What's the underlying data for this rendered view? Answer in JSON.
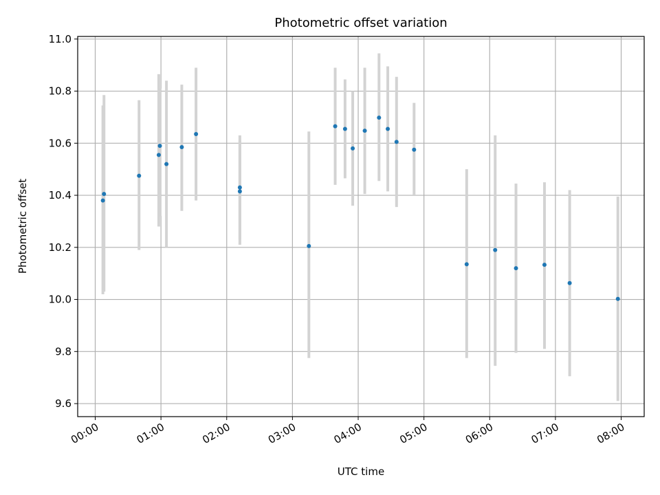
{
  "chart_data": {
    "type": "scatter",
    "title": "Photometric offset variation",
    "xlabel": "UTC time",
    "ylabel": "Photometric offset",
    "x_tick_labels": [
      "00:00",
      "01:00",
      "02:00",
      "03:00",
      "04:00",
      "05:00",
      "06:00",
      "07:00",
      "08:00"
    ],
    "y_tick_labels": [
      "9.6",
      "9.8",
      "10.0",
      "10.2",
      "10.4",
      "10.6",
      "10.8",
      "11.0"
    ],
    "xlim": [
      "23:44",
      "08:21"
    ],
    "ylim": [
      9.55,
      11.01
    ],
    "grid": true,
    "colors": {
      "points": "#1f77b4",
      "errorbars": "#d3d3d3",
      "grid": "#b0b0b0"
    },
    "series": [
      {
        "x": [
          "00:07",
          "00:08",
          "00:40",
          "00:58",
          "00:59",
          "01:05",
          "01:19",
          "01:32",
          "02:12",
          "02:12",
          "03:15",
          "03:39",
          "03:48",
          "03:55",
          "04:06",
          "04:19",
          "04:27",
          "04:35",
          "04:51",
          "05:39",
          "06:05",
          "06:24",
          "06:50",
          "07:13",
          "07:57"
        ],
        "y": [
          10.38,
          10.405,
          10.475,
          10.555,
          10.59,
          10.52,
          10.585,
          10.635,
          10.415,
          10.43,
          10.205,
          10.665,
          10.655,
          10.58,
          10.648,
          10.698,
          10.655,
          10.605,
          10.575,
          10.135,
          10.19,
          10.12,
          10.133,
          10.063,
          10.002
        ],
        "ylow": [
          10.02,
          10.03,
          10.19,
          10.28,
          10.32,
          10.2,
          10.34,
          10.38,
          10.21,
          10.23,
          9.775,
          10.44,
          10.465,
          10.36,
          10.405,
          10.455,
          10.415,
          10.355,
          10.4,
          9.775,
          9.745,
          9.795,
          9.81,
          9.705,
          9.61
        ],
        "yhigh": [
          10.745,
          10.785,
          10.765,
          10.865,
          10.81,
          10.84,
          10.825,
          10.89,
          10.63,
          10.61,
          10.645,
          10.89,
          10.845,
          10.8,
          10.89,
          10.945,
          10.895,
          10.855,
          10.755,
          10.5,
          10.63,
          10.445,
          10.45,
          10.42,
          10.395
        ]
      }
    ]
  }
}
